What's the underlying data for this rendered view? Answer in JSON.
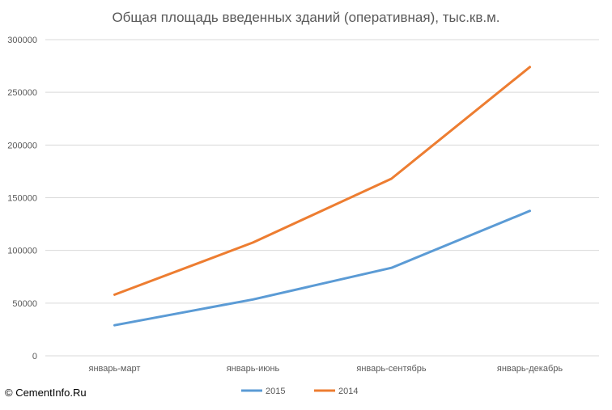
{
  "chart_data": {
    "type": "line",
    "title": "Общая площадь введенных зданий (оперативная), тыс.кв.м.",
    "categories": [
      "январь-март",
      "январь-июнь",
      "январь-сентябрь",
      "январь-декабрь"
    ],
    "series": [
      {
        "name": "2015",
        "color": "#5b9bd5",
        "values": [
          29000,
          53500,
          83500,
          137500
        ]
      },
      {
        "name": "2014",
        "color": "#ed7d31",
        "values": [
          58000,
          107500,
          168000,
          274000
        ]
      }
    ],
    "ylim": [
      0,
      300000
    ],
    "yticks": [
      0,
      50000,
      100000,
      150000,
      200000,
      250000,
      300000
    ],
    "grid": true,
    "legend": "bottom"
  },
  "footer": {
    "copyright": "© CementInfo.Ru"
  }
}
